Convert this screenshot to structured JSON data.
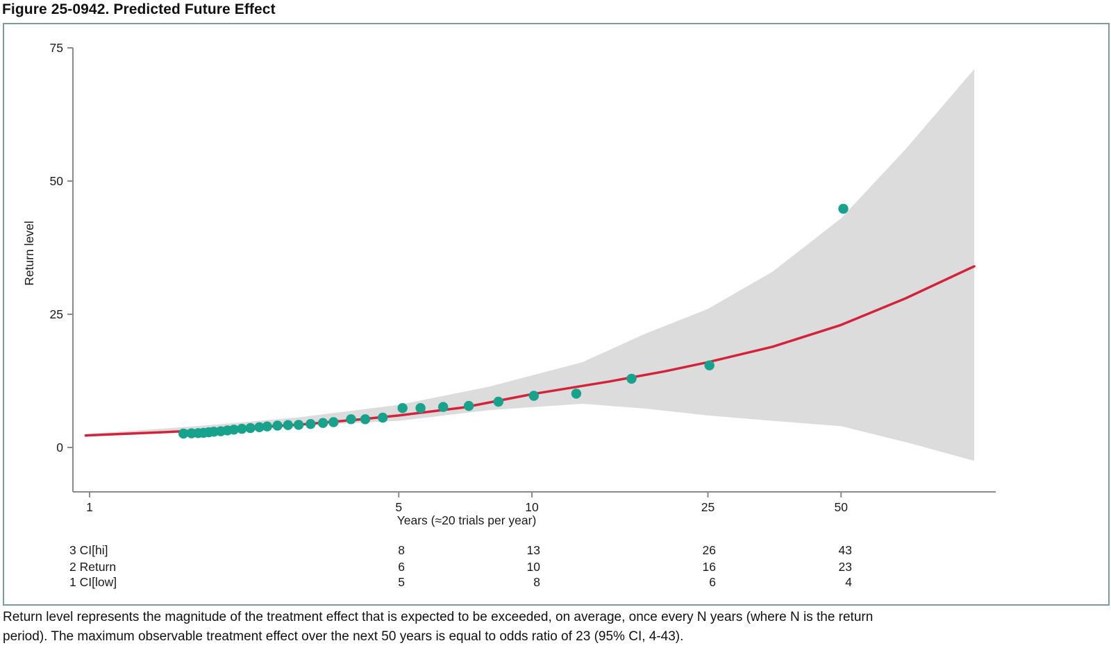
{
  "page": {
    "title": "Figure 25-0942. Predicted Future Effect",
    "caption_lines": [
      "Return level represents the magnitude of the treatment effect that is expected to be exceeded, on average, once every N years (where N is the return",
      "period). The maximum observable treatment effect over the next 50 years is equal to odds ratio of 23  (95% CI, 4-43)."
    ]
  },
  "colors": {
    "panel_border": "#7d9b99",
    "axis": "#8a8a8a",
    "tick_text": "#1a1a1a",
    "return_line": "#D2233B",
    "confidence_band": "#DCDCDC",
    "observed_points": "#17A28C"
  },
  "chart_data": {
    "type": "line",
    "title": "Figure 25-0942. Predicted Future Effect",
    "xlabel": "Years (≈20 trials per year)",
    "ylabel": "Return level",
    "x_scale": "log",
    "grid": false,
    "legend": false,
    "xlim": [
      0.98,
      100
    ],
    "ylim": [
      -4.5,
      78
    ],
    "x_ticks": [
      "1",
      "5",
      "10",
      "25",
      "50"
    ],
    "x_tick_values": [
      1,
      5,
      10,
      25,
      50
    ],
    "y_ticks": [
      "0",
      "25",
      "50",
      "75"
    ],
    "y_tick_values": [
      0,
      25,
      50,
      75
    ],
    "series": [
      {
        "name": "95% confidence band",
        "type": "band",
        "color": "#DCDCDC",
        "x": [
          0.98,
          1.5,
          2,
          3,
          5,
          8,
          13,
          18,
          25,
          35,
          50,
          70,
          100
        ],
        "upper": [
          2.5,
          3.6,
          4.4,
          5.7,
          8,
          11.4,
          16,
          21.3,
          26,
          33,
          43,
          56,
          71
        ],
        "lower": [
          2.0,
          2.8,
          3.3,
          4.1,
          5,
          7.0,
          8.2,
          7.3,
          6,
          5,
          4,
          1,
          -2.5
        ]
      },
      {
        "name": "Return level",
        "type": "line",
        "color": "#D2233B",
        "x": [
          0.98,
          1.5,
          2,
          3,
          4,
          5,
          7,
          10,
          15,
          20,
          25,
          35,
          50,
          70,
          100
        ],
        "y": [
          2.25,
          2.9,
          3.4,
          4.3,
          5.2,
          6,
          7.5,
          10,
          12.4,
          14.3,
          16,
          18.9,
          23,
          28,
          34
        ]
      },
      {
        "name": "Observed effects",
        "type": "scatter",
        "color": "#17A28C",
        "points": [
          [
            1.63,
            2.6
          ],
          [
            1.7,
            2.65
          ],
          [
            1.76,
            2.7
          ],
          [
            1.81,
            2.75
          ],
          [
            1.86,
            2.85
          ],
          [
            1.91,
            2.95
          ],
          [
            1.98,
            3.05
          ],
          [
            2.05,
            3.2
          ],
          [
            2.12,
            3.35
          ],
          [
            2.21,
            3.5
          ],
          [
            2.31,
            3.65
          ],
          [
            2.42,
            3.8
          ],
          [
            2.52,
            3.95
          ],
          [
            2.66,
            4.1
          ],
          [
            2.81,
            4.2
          ],
          [
            2.97,
            4.25
          ],
          [
            3.16,
            4.4
          ],
          [
            3.37,
            4.6
          ],
          [
            3.56,
            4.75
          ],
          [
            3.9,
            5.3
          ],
          [
            4.2,
            5.3
          ],
          [
            4.6,
            5.6
          ],
          [
            5.1,
            7.4
          ],
          [
            5.6,
            7.4
          ],
          [
            6.3,
            7.6
          ],
          [
            7.2,
            7.8
          ],
          [
            8.4,
            8.6
          ],
          [
            10.1,
            9.7
          ],
          [
            12.6,
            10.1
          ],
          [
            16.8,
            12.9
          ],
          [
            25.2,
            15.4
          ],
          [
            50.6,
            44.8
          ]
        ]
      }
    ],
    "table": {
      "column_years": [
        5,
        10,
        25,
        50
      ],
      "rows": [
        {
          "label": "3 CI[hi]",
          "values": [
            "8",
            "13",
            "26",
            "43"
          ]
        },
        {
          "label": "2 Return",
          "values": [
            "6",
            "10",
            "16",
            "23"
          ]
        },
        {
          "label": "1 CI[low]",
          "values": [
            "5",
            "8",
            "6",
            "4"
          ]
        }
      ]
    }
  }
}
